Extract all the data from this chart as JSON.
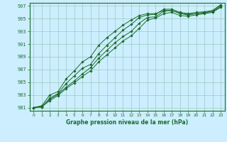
{
  "title": "Graphe pression niveau de la mer (hPa)",
  "bg_color": "#cceeff",
  "grid_color": "#99ccbb",
  "line_color": "#1a6b2a",
  "xlim": [
    -0.5,
    23.5
  ],
  "ylim": [
    980.5,
    997.5
  ],
  "yticks": [
    981,
    983,
    985,
    987,
    989,
    991,
    993,
    995,
    997
  ],
  "xticks": [
    0,
    1,
    2,
    3,
    4,
    5,
    6,
    7,
    8,
    9,
    10,
    11,
    12,
    13,
    14,
    15,
    16,
    17,
    18,
    19,
    20,
    21,
    22,
    23
  ],
  "series": [
    [
      981.0,
      981.2,
      982.3,
      983.1,
      984.2,
      985.2,
      986.3,
      987.3,
      988.8,
      990.0,
      991.2,
      992.2,
      993.0,
      994.3,
      995.2,
      995.3,
      996.2,
      996.3,
      995.9,
      995.7,
      995.8,
      995.9,
      996.2,
      997.1
    ],
    [
      981.0,
      981.1,
      982.1,
      982.9,
      984.0,
      984.9,
      985.9,
      986.8,
      988.2,
      989.3,
      990.4,
      991.5,
      992.3,
      993.5,
      994.8,
      995.1,
      995.8,
      996.0,
      995.5,
      995.4,
      995.6,
      995.8,
      996.0,
      996.8
    ],
    [
      981.0,
      981.1,
      982.5,
      983.2,
      984.8,
      986.0,
      987.2,
      987.8,
      989.5,
      990.8,
      992.0,
      993.2,
      994.1,
      995.2,
      995.6,
      995.7,
      996.5,
      996.5,
      996.0,
      995.8,
      996.0,
      996.1,
      996.3,
      997.2
    ],
    [
      981.0,
      981.3,
      983.0,
      983.5,
      985.5,
      986.8,
      988.2,
      989.0,
      990.8,
      992.0,
      993.0,
      994.0,
      994.8,
      995.5,
      995.8,
      995.8,
      996.3,
      996.3,
      995.8,
      995.6,
      995.8,
      996.0,
      996.1,
      996.9
    ]
  ]
}
